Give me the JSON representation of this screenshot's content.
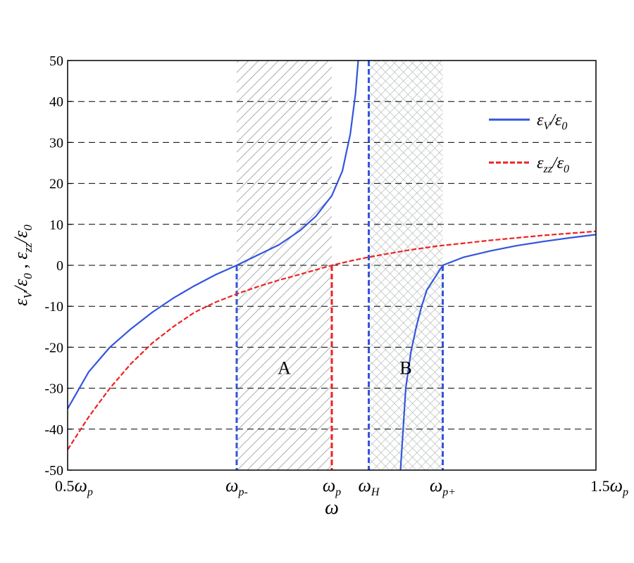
{
  "chart_data": {
    "type": "line",
    "xlabel": "ω",
    "ylabel_parts": {
      "a_sym": "ε",
      "a_sub": "V",
      "a_div": "/ε",
      "a_sub0": "0",
      "sep": " , ",
      "b_sym": "ε",
      "b_sub": "zz",
      "b_div": "/ε",
      "b_sub0": "0"
    },
    "xlim": [
      0.5,
      1.5
    ],
    "ylim": [
      -50,
      50
    ],
    "yticks": [
      -50,
      -40,
      -30,
      -20,
      -10,
      0,
      10,
      20,
      30,
      40,
      50
    ],
    "grid": "horizontal-dashed",
    "legend_placement": "right",
    "x_tick_labels": [
      {
        "x": 0.5,
        "num": "0.5",
        "sym": "ω",
        "sub": "p"
      },
      {
        "x": 0.82,
        "num": "",
        "sym": "ω",
        "sub": "p-"
      },
      {
        "x": 1.0,
        "num": "",
        "sym": "ω",
        "sub": "p"
      },
      {
        "x": 1.07,
        "num": "",
        "sym": "ω",
        "sub": "H"
      },
      {
        "x": 1.21,
        "num": "",
        "sym": "ω",
        "sub": "p+"
      },
      {
        "x": 1.5,
        "num": "1.5",
        "sym": "ω",
        "sub": "p"
      }
    ],
    "series": [
      {
        "name": "εV/ε0",
        "legend": {
          "sym": "ε",
          "sub": "V",
          "div": "/ε",
          "sub0": "0"
        },
        "color": "#3355dd",
        "style": "solid",
        "segments": [
          [
            [
              0.5,
              -35
            ],
            [
              0.54,
              -26
            ],
            [
              0.58,
              -20
            ],
            [
              0.62,
              -15.5
            ],
            [
              0.66,
              -11.5
            ],
            [
              0.7,
              -8
            ],
            [
              0.74,
              -5
            ],
            [
              0.78,
              -2.3
            ],
            [
              0.82,
              0
            ],
            [
              0.86,
              2.5
            ],
            [
              0.9,
              5
            ],
            [
              0.94,
              8.5
            ],
            [
              0.97,
              12
            ],
            [
              1.0,
              17
            ],
            [
              1.02,
              23
            ],
            [
              1.035,
              32
            ],
            [
              1.045,
              42
            ],
            [
              1.05,
              50
            ]
          ],
          [
            [
              1.13,
              -50
            ],
            [
              1.135,
              -40
            ],
            [
              1.14,
              -30
            ],
            [
              1.15,
              -21
            ],
            [
              1.16,
              -15
            ],
            [
              1.17,
              -10
            ],
            [
              1.18,
              -6
            ],
            [
              1.195,
              -3
            ],
            [
              1.21,
              0
            ],
            [
              1.25,
              2
            ],
            [
              1.3,
              3.5
            ],
            [
              1.35,
              4.8
            ],
            [
              1.4,
              5.8
            ],
            [
              1.45,
              6.7
            ],
            [
              1.5,
              7.5
            ]
          ]
        ]
      },
      {
        "name": "εzz/ε0",
        "legend": {
          "sym": "ε",
          "sub": "zz",
          "div": "/ε",
          "sub0": "0"
        },
        "color": "#ee2222",
        "style": "dashed",
        "segments": [
          [
            [
              0.5,
              -45
            ],
            [
              0.54,
              -37
            ],
            [
              0.58,
              -30
            ],
            [
              0.62,
              -24
            ],
            [
              0.66,
              -19
            ],
            [
              0.7,
              -15
            ],
            [
              0.74,
              -11.5
            ],
            [
              0.78,
              -9
            ],
            [
              0.82,
              -7
            ],
            [
              0.86,
              -5.2
            ],
            [
              0.9,
              -3.6
            ],
            [
              0.94,
              -2.2
            ],
            [
              0.97,
              -1.1
            ],
            [
              1.0,
              0
            ],
            [
              1.04,
              1.2
            ],
            [
              1.07,
              2
            ],
            [
              1.1,
              2.7
            ],
            [
              1.15,
              3.8
            ],
            [
              1.2,
              4.7
            ],
            [
              1.25,
              5.4
            ],
            [
              1.3,
              6.1
            ],
            [
              1.35,
              6.7
            ],
            [
              1.4,
              7.3
            ],
            [
              1.45,
              7.8
            ],
            [
              1.5,
              8.3
            ]
          ]
        ]
      }
    ],
    "vertical_markers": [
      {
        "x": 0.82,
        "from": -50,
        "to": 0,
        "color": "#3355dd"
      },
      {
        "x": 1.0,
        "from": -50,
        "to": 0,
        "color": "#ee2222"
      },
      {
        "x": 1.07,
        "from": -50,
        "to": 50,
        "color": "#3355dd"
      },
      {
        "x": 1.21,
        "from": -50,
        "to": 0,
        "color": "#3355dd"
      }
    ],
    "regions": [
      {
        "label": "A",
        "x0": 0.82,
        "x1": 1.0,
        "pattern": "diagonal",
        "label_y": -25
      },
      {
        "label": "B",
        "x0": 1.07,
        "x1": 1.21,
        "pattern": "crosshatch",
        "label_y": -25
      }
    ]
  }
}
